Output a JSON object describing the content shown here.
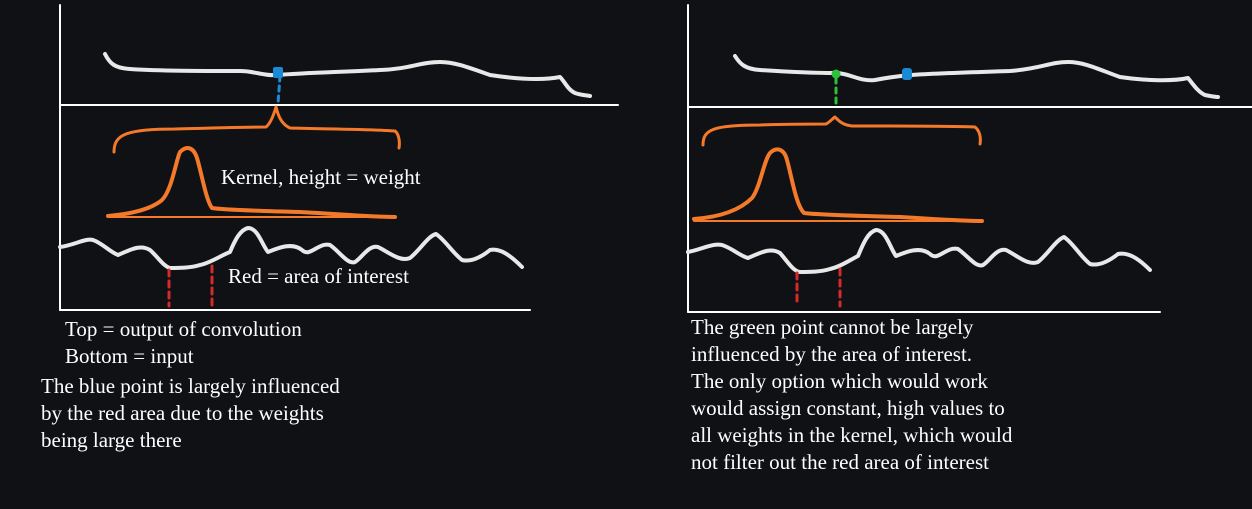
{
  "colors": {
    "background": "#0f1115",
    "signal": "#e8e8e8",
    "kernel": "#f47a2a",
    "blue_point": "#1b8ad6",
    "green_point": "#2fbf3a",
    "area_of_interest": "#d42a2a"
  },
  "left_panel": {
    "kernel_label": "Kernel, height = weight",
    "area_label": "Red = area of interest",
    "legend": [
      "Top = output of convolution",
      "Bottom = input"
    ],
    "explanation": [
      "The blue point is largely influenced",
      "by the red area due to the weights",
      "being large there"
    ]
  },
  "right_panel": {
    "explanation": [
      "The green point cannot be largely",
      "influenced by the area of interest.",
      "The only option which would work",
      "would assign constant, high values to",
      "all weights in the kernel, which would",
      "not filter out the red area of interest"
    ]
  }
}
